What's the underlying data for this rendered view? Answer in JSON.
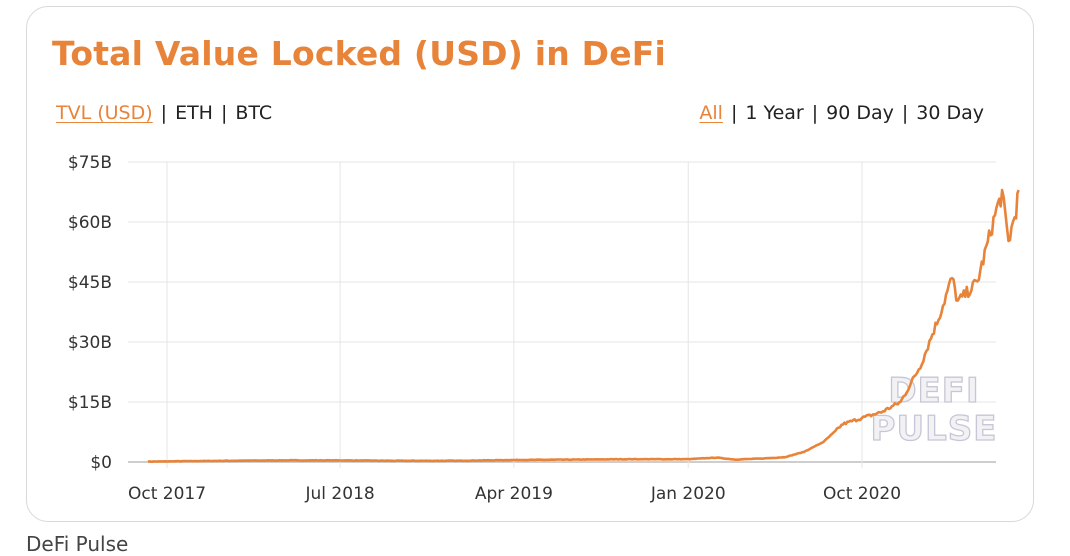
{
  "title": "Total Value Locked (USD) in DeFi",
  "unit_options": [
    "TVL (USD)",
    "ETH",
    "BTC"
  ],
  "unit_selected": 0,
  "range_options": [
    "All",
    "1 Year",
    "90 Day",
    "30 Day"
  ],
  "range_selected": 0,
  "watermark": [
    "DEFI",
    "PULSE"
  ],
  "footer_text": "DeFi Pulse",
  "accent_color": "#e8833a",
  "chart_data": {
    "type": "line",
    "title": "Total Value Locked (USD) in DeFi",
    "xlabel": "",
    "ylabel": "",
    "x_ticks": [
      "Oct 2017",
      "Jul 2018",
      "Apr 2019",
      "Jan 2020",
      "Oct 2020"
    ],
    "y_ticks": [
      "$0",
      "$15B",
      "$30B",
      "$45B",
      "$60B",
      "$75B"
    ],
    "ylim": [
      0,
      75
    ],
    "y_unit": "billions USD",
    "grid": true,
    "legend": "none",
    "series": [
      {
        "color": "#e8833a",
        "points": [
          [
            "2017-09-01",
            0.1
          ],
          [
            "2017-10-01",
            0.15
          ],
          [
            "2018-01-01",
            0.3
          ],
          [
            "2018-04-01",
            0.4
          ],
          [
            "2018-07-01",
            0.4
          ],
          [
            "2018-10-01",
            0.3
          ],
          [
            "2019-01-01",
            0.3
          ],
          [
            "2019-04-01",
            0.5
          ],
          [
            "2019-07-01",
            0.6
          ],
          [
            "2019-10-01",
            0.7
          ],
          [
            "2020-01-01",
            0.7
          ],
          [
            "2020-02-15",
            1.1
          ],
          [
            "2020-03-15",
            0.6
          ],
          [
            "2020-05-01",
            0.9
          ],
          [
            "2020-06-01",
            1.2
          ],
          [
            "2020-07-01",
            2.5
          ],
          [
            "2020-08-01",
            5.0
          ],
          [
            "2020-09-01",
            9.5
          ],
          [
            "2020-10-01",
            11.0
          ],
          [
            "2020-11-01",
            12.5
          ],
          [
            "2020-12-01",
            15.0
          ],
          [
            "2021-01-01",
            24.0
          ],
          [
            "2021-02-01",
            37.0
          ],
          [
            "2021-02-20",
            46.0
          ],
          [
            "2021-03-01",
            40.0
          ],
          [
            "2021-04-01",
            45.0
          ],
          [
            "2021-05-01",
            63.0
          ],
          [
            "2021-05-10",
            67.0
          ],
          [
            "2021-05-20",
            55.0
          ],
          [
            "2021-06-01",
            63.0
          ],
          [
            "2021-06-05",
            68.0
          ]
        ]
      }
    ]
  }
}
